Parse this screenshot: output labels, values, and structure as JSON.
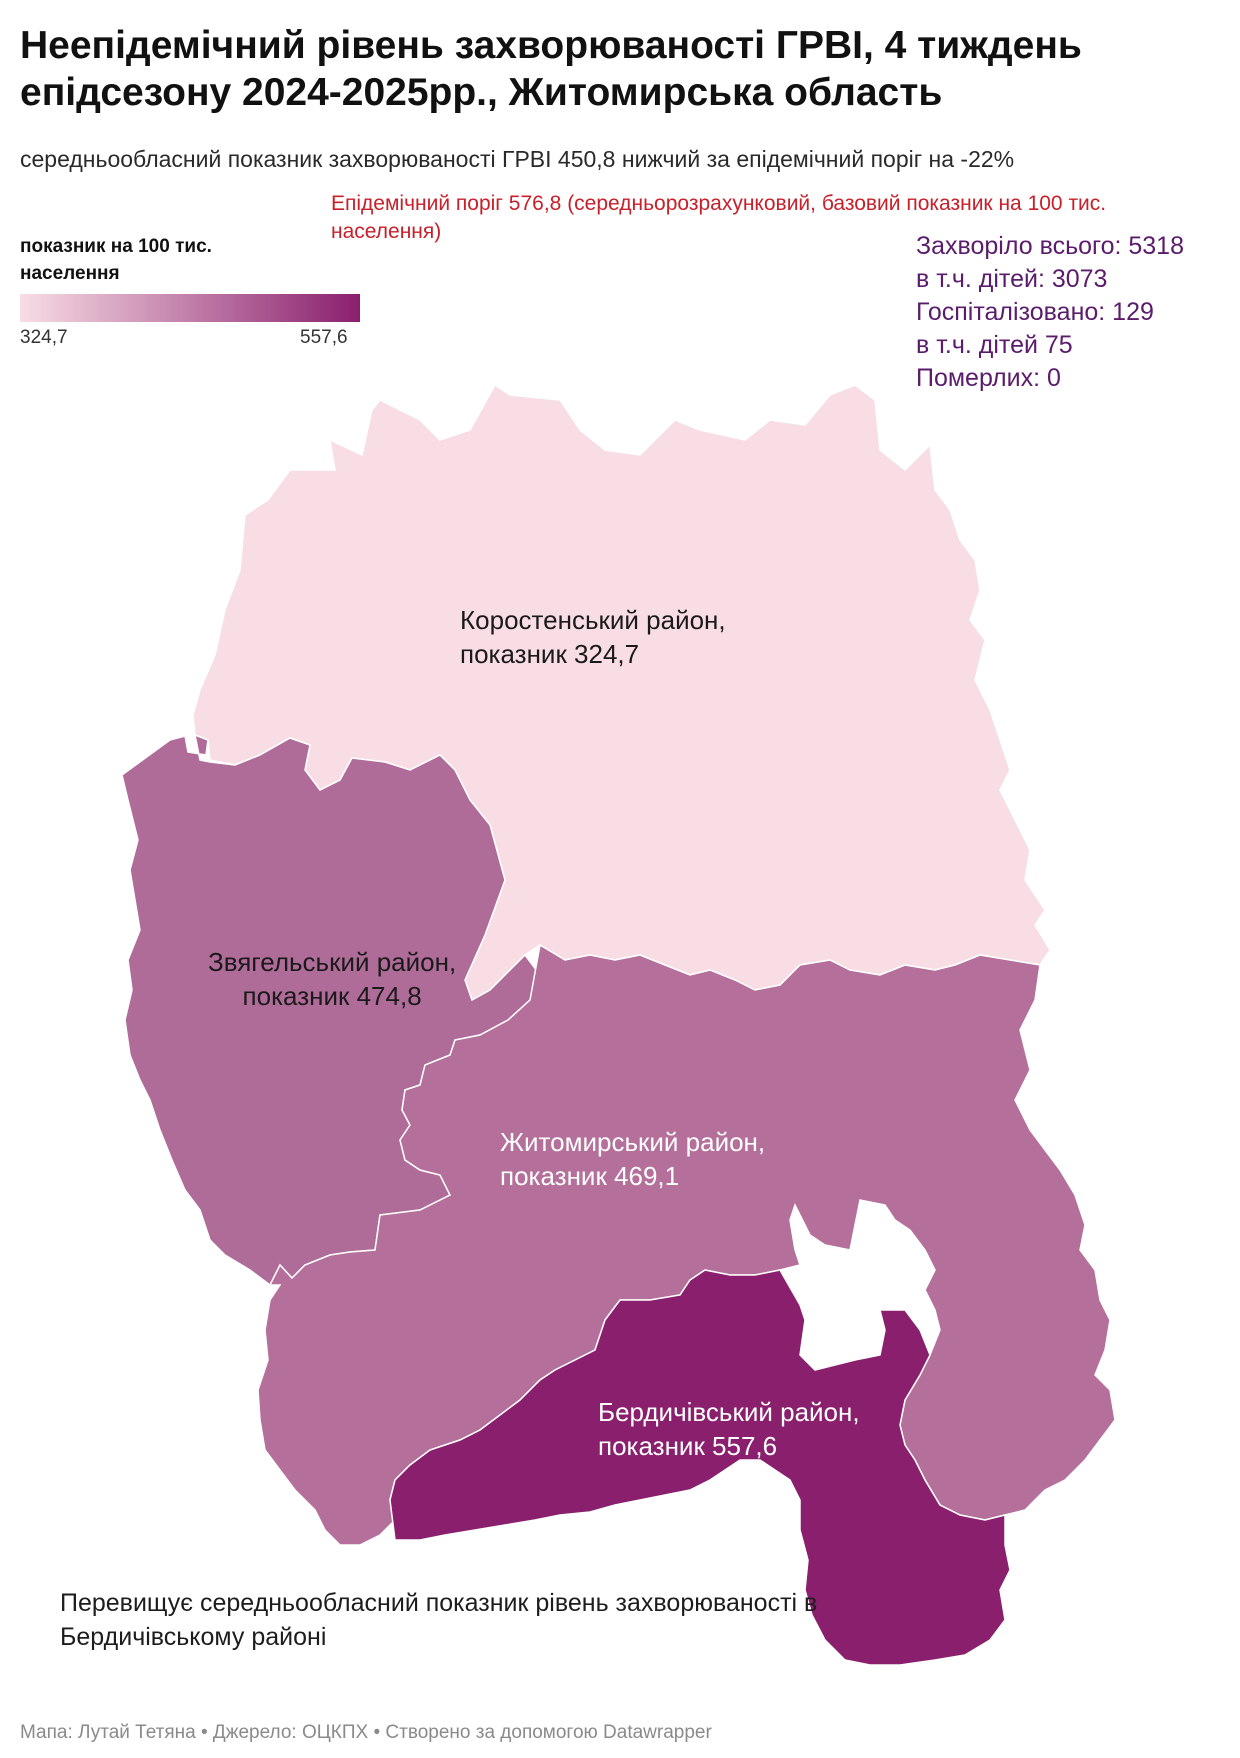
{
  "header": {
    "title": "Неепідемічний рівень захворюваності ГРВІ, 4 тиждень епідсезону 2024-2025рр., Житомирська область",
    "subtitle": "середньообласний показник захворюваності ГРВІ  450,8 нижчий за  епідемічний поріг на -22%",
    "threshold": "Епідемічний поріг 576,8 (середньорозрахунковий, базовий показник на 100 тис. населення)"
  },
  "legend": {
    "title": "показник на 100 тис. населення",
    "min": "324,7",
    "max": "557,6",
    "color_min": "#f8dde4",
    "color_max": "#8a1f6e"
  },
  "stats": {
    "sick_total": "Захворіло всього: 5318",
    "sick_children": "в т.ч. дітей: 3073",
    "hospitalized": "Госпіталізовано: 129",
    "hospitalized_children": "в т.ч. дітей 75",
    "deaths": "Померлих: 0"
  },
  "regions": [
    {
      "name": "Коростенський район,",
      "value_label": "показник 324,7",
      "value": 324.7,
      "color": "#f8dde4"
    },
    {
      "name": "Звягельський район,",
      "value_label": "показник  474,8",
      "value": 474.8,
      "color": "#b06c99"
    },
    {
      "name": "Житомирський район,",
      "value_label": "показник 469,1",
      "value": 469.1,
      "color": "#b46f9b"
    },
    {
      "name": "Бердичівський район,",
      "value_label": "показник 557,6",
      "value": 557.6,
      "color": "#8a1f6e"
    }
  ],
  "note": "Перевищує середньообласний показник рівень захворюваності в  Бердичівському районі",
  "footer": "Мапа: Лутай Тетяна • Джерело: ОЦКПХ • Створено за допомогою Datawrapper"
}
